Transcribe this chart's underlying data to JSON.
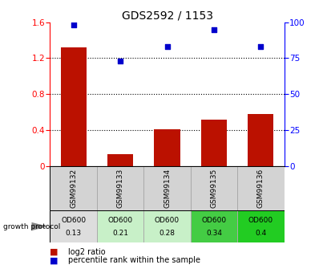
{
  "title": "GDS2592 / 1153",
  "samples": [
    "GSM99132",
    "GSM99133",
    "GSM99134",
    "GSM99135",
    "GSM99136"
  ],
  "log2_ratio": [
    1.32,
    0.13,
    0.41,
    0.52,
    0.58
  ],
  "percentile_rank": [
    98,
    73,
    83,
    95,
    83
  ],
  "bar_color": "#bb1100",
  "dot_color": "#0000cc",
  "ylim_left": [
    0,
    1.6
  ],
  "ylim_right": [
    0,
    100
  ],
  "yticks_left": [
    0,
    0.4,
    0.8,
    1.2,
    1.6
  ],
  "yticks_right": [
    0,
    25,
    50,
    75,
    100
  ],
  "od600_values": [
    "0.13",
    "0.21",
    "0.28",
    "0.34",
    "0.4"
  ],
  "od600_colors": [
    "#dddddd",
    "#c8f0c8",
    "#c8f0c8",
    "#44cc44",
    "#22cc22"
  ],
  "growth_protocol_label": "growth protocol",
  "legend_items": [
    "log2 ratio",
    "percentile rank within the sample"
  ],
  "background_color": "#ffffff",
  "title_fontsize": 10,
  "tick_fontsize": 7.5,
  "sample_name_fontsize": 6.5,
  "od_fontsize": 6.5
}
